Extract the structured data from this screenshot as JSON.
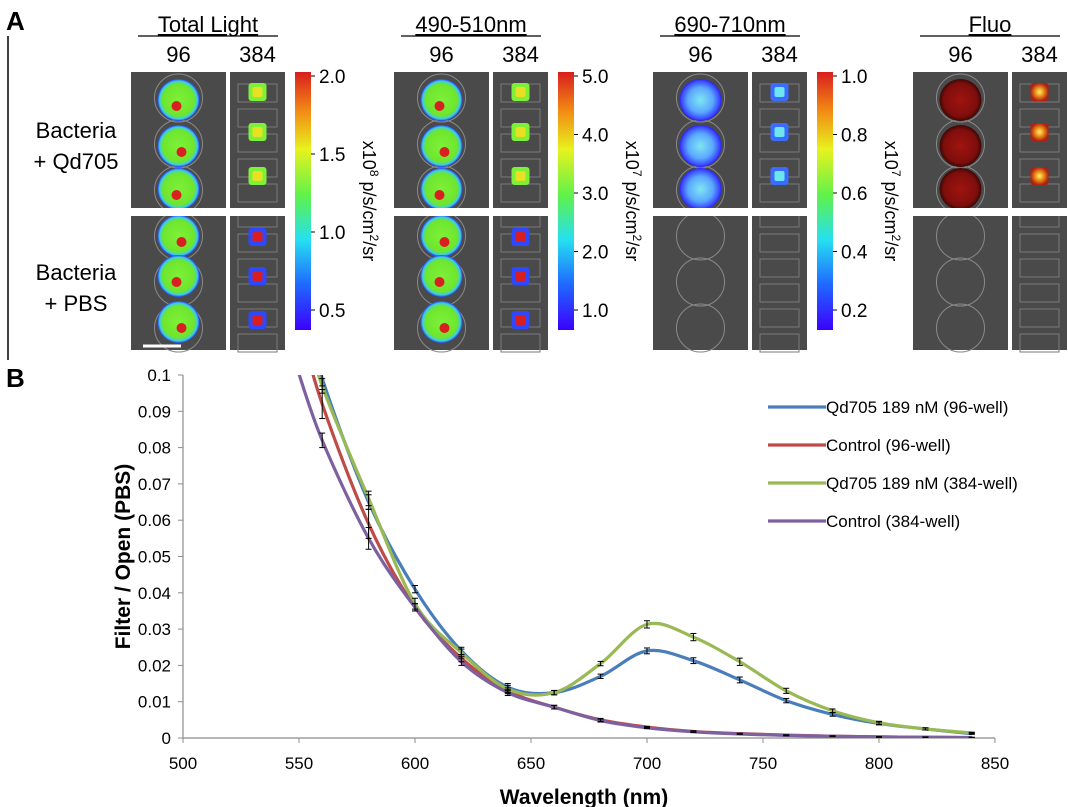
{
  "panel_a": {
    "label": "A",
    "row_labels": [
      [
        "Bacteria",
        "+ Qd705"
      ],
      [
        "Bacteria",
        "+ PBS"
      ]
    ],
    "groups": [
      {
        "title": "Total Light",
        "plates": [
          "96",
          "384"
        ],
        "scale_label": "x10^8 p/s/cm^2/sr",
        "exp": "8",
        "ticks": [
          "2.0",
          "1.5",
          "1.0",
          "0.5"
        ],
        "signal": "both"
      },
      {
        "title": "490-510nm",
        "plates": [
          "96",
          "384"
        ],
        "scale_label": "x10^7 p/s/cm^2/sr",
        "exp": "7",
        "ticks": [
          "5.0",
          "4.0",
          "3.0",
          "2.0",
          "1.0"
        ],
        "signal": "both"
      },
      {
        "title": "690-710nm",
        "plates": [
          "96",
          "384"
        ],
        "scale_label": "x10^7 p/s/cm^2/sr",
        "exp": "7",
        "ticks": [
          "1.0",
          "0.8",
          "0.6",
          "0.4",
          "0.2"
        ],
        "signal": "top-blue"
      },
      {
        "title": "Fluo",
        "plates": [
          "96",
          "384"
        ],
        "scale_label": "",
        "exp": "",
        "ticks": [],
        "signal": "top-red"
      }
    ]
  },
  "chart_data": {
    "panel_label": "B",
    "type": "line",
    "xlabel": "Wavelength (nm)",
    "ylabel": "Filter / Open (PBS)",
    "xlim": [
      500,
      850
    ],
    "ylim": [
      0,
      0.1
    ],
    "xticks": [
      500,
      550,
      600,
      650,
      700,
      750,
      800,
      850
    ],
    "yticks": [
      0,
      0.01,
      0.02,
      0.03,
      0.04,
      0.05,
      0.06,
      0.07,
      0.08,
      0.09,
      0.1
    ],
    "grid": false,
    "legend_position": "top-right",
    "series": [
      {
        "name": "Qd705 189 nM (96-well)",
        "color": "#4a7ebb",
        "x": [
          560,
          580,
          600,
          620,
          640,
          660,
          680,
          700,
          720,
          740,
          760,
          780,
          800,
          820,
          840
        ],
        "y": [
          0.099,
          0.065,
          0.041,
          0.024,
          0.014,
          0.0125,
          0.017,
          0.024,
          0.0213,
          0.016,
          0.0103,
          0.0065,
          0.004,
          0.0025,
          0.0012
        ],
        "err": [
          0.002,
          0.002,
          0.001,
          0.001,
          0.001,
          0.0006,
          0.0006,
          0.0008,
          0.0008,
          0.0008,
          0.0006,
          0.0005,
          0.0004,
          0.0003,
          0.0002
        ]
      },
      {
        "name": "Control (96-well)",
        "color": "#be4b48",
        "x": [
          560,
          580,
          600,
          620,
          640,
          660,
          680,
          700,
          720,
          740,
          760,
          780,
          800,
          820,
          840
        ],
        "y": [
          0.092,
          0.059,
          0.036,
          0.022,
          0.013,
          0.0085,
          0.005,
          0.003,
          0.0018,
          0.0012,
          0.0008,
          0.0005,
          0.0003,
          0.0002,
          0.0001
        ],
        "err": [
          0.004,
          0.004,
          0.001,
          0.001,
          0.0008,
          0.0005,
          0.0004,
          0.0002,
          0.0002,
          0.0001,
          0.0001,
          0.0001,
          0.0001,
          0.0001,
          0.0001
        ]
      },
      {
        "name": "Qd705 189 nM (384-well)",
        "color": "#98b954",
        "x": [
          560,
          580,
          600,
          620,
          640,
          660,
          680,
          700,
          720,
          740,
          760,
          780,
          800,
          820,
          840
        ],
        "y": [
          0.097,
          0.066,
          0.037,
          0.0235,
          0.0135,
          0.0125,
          0.0205,
          0.0313,
          0.0278,
          0.021,
          0.013,
          0.0075,
          0.0042,
          0.0025,
          0.0014
        ],
        "err": [
          0.002,
          0.002,
          0.0015,
          0.001,
          0.001,
          0.0006,
          0.0006,
          0.001,
          0.001,
          0.001,
          0.0007,
          0.0005,
          0.0004,
          0.0003,
          0.0002
        ]
      },
      {
        "name": "Control (384-well)",
        "color": "#7d60a0",
        "x": [
          560,
          580,
          600,
          620,
          640,
          660,
          680,
          700,
          720,
          740,
          760,
          780,
          800,
          820,
          840
        ],
        "y": [
          0.082,
          0.055,
          0.036,
          0.021,
          0.0125,
          0.0085,
          0.0048,
          0.0028,
          0.0017,
          0.0011,
          0.0007,
          0.0005,
          0.0003,
          0.0002,
          0.0001
        ],
        "err": [
          0.002,
          0.003,
          0.001,
          0.001,
          0.0008,
          0.0005,
          0.0004,
          0.0002,
          0.0002,
          0.0001,
          0.0001,
          0.0001,
          0.0001,
          0.0001,
          0.0001
        ]
      }
    ]
  }
}
